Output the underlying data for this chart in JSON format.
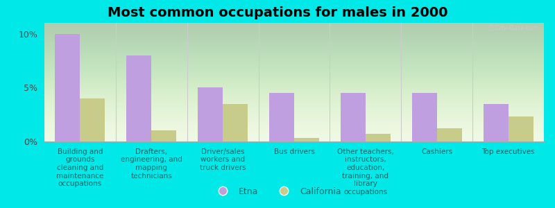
{
  "title": "Most common occupations for males in 2000",
  "categories": [
    "Building and\ngrounds\ncleaning and\nmaintenance\noccupations",
    "Drafters,\nengineering, and\nmapping\ntechnicians",
    "Driver/sales\nworkers and\ntruck drivers",
    "Bus drivers",
    "Other teachers,\ninstructors,\neducation,\ntraining, and\nlibrary\noccupations",
    "Cashiers",
    "Top executives"
  ],
  "etna_values": [
    10.0,
    8.0,
    5.0,
    4.5,
    4.5,
    4.5,
    3.5
  ],
  "california_values": [
    4.0,
    1.0,
    3.5,
    0.3,
    0.7,
    1.2,
    2.3
  ],
  "etna_color": "#bf9fdf",
  "california_color": "#c8cc8a",
  "background_color": "#00e8e8",
  "plot_bg_top": "#e8f5d0",
  "plot_bg_bottom": "#f8fff0",
  "ylim": [
    0,
    11
  ],
  "yticks": [
    0,
    5,
    10
  ],
  "ytick_labels": [
    "0%",
    "5%",
    "10%"
  ],
  "bar_width": 0.35,
  "legend_etna": "Etna",
  "legend_california": "California",
  "title_fontsize": 14,
  "label_fontsize": 7.5,
  "watermark": "Ⓜ City-Data.com",
  "separator_color": "#cccccc",
  "tick_label_color": "#444444",
  "text_color": "#006666"
}
